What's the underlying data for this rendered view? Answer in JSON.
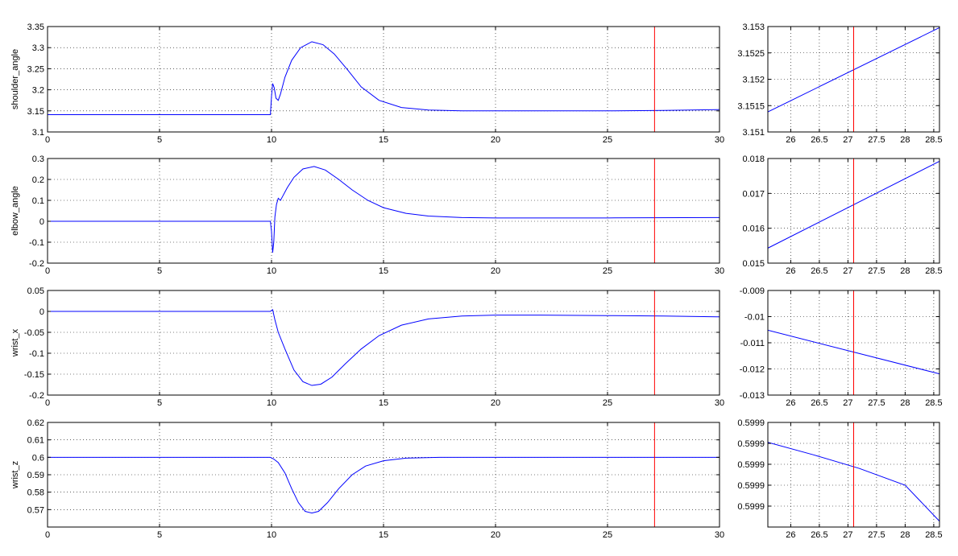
{
  "chart_data": [
    {
      "id": "shoulder-main",
      "type": "line",
      "ylabel": "shoulder_angle",
      "xlim": [
        0,
        30
      ],
      "ylim": [
        3.1,
        3.35
      ],
      "xticks": [
        0,
        5,
        10,
        15,
        20,
        25,
        30
      ],
      "xtick_labels": [
        "0",
        "5",
        "10",
        "15",
        "20",
        "25",
        "30"
      ],
      "yticks": [
        3.1,
        3.15,
        3.2,
        3.25,
        3.3,
        3.35
      ],
      "ytick_labels": [
        "3.1",
        "3.15",
        "3.2",
        "3.25",
        "3.3",
        "3.35"
      ],
      "grid": true,
      "cursor_x": 27.1,
      "series": [
        {
          "color": "#0000ff",
          "x": [
            0,
            7.5,
            9.95,
            10.0,
            10.05,
            10.12,
            10.2,
            10.3,
            10.4,
            10.6,
            10.9,
            11.3,
            11.8,
            12.3,
            12.8,
            13.4,
            14.0,
            14.8,
            15.8,
            17.0,
            18.5,
            20.0,
            25.0,
            27.5,
            30.0
          ],
          "y": [
            3.141,
            3.141,
            3.141,
            3.185,
            3.215,
            3.205,
            3.18,
            3.175,
            3.19,
            3.23,
            3.27,
            3.3,
            3.314,
            3.307,
            3.285,
            3.247,
            3.207,
            3.175,
            3.158,
            3.152,
            3.15,
            3.15,
            3.15,
            3.151,
            3.153
          ]
        }
      ]
    },
    {
      "id": "shoulder-zoom",
      "type": "line",
      "xlim": [
        25.6,
        28.6
      ],
      "ylim": [
        3.151,
        3.153
      ],
      "xticks": [
        26,
        26.5,
        27,
        27.5,
        28,
        28.5
      ],
      "xtick_labels": [
        "26",
        "26.5",
        "27",
        "27.5",
        "28",
        "28.5"
      ],
      "yticks": [
        3.151,
        3.1515,
        3.152,
        3.1525,
        3.153
      ],
      "ytick_labels": [
        "3.151",
        "3.1515",
        "3.152",
        "3.1525",
        "3.153"
      ],
      "grid": true,
      "cursor_x": 27.1,
      "series": [
        {
          "color": "#0000ff",
          "x": [
            25.6,
            28.6
          ],
          "y": [
            3.15138,
            3.15298
          ]
        }
      ]
    },
    {
      "id": "elbow-main",
      "type": "line",
      "ylabel": "elbow_angle",
      "xlim": [
        0,
        30
      ],
      "ylim": [
        -0.2,
        0.3
      ],
      "xticks": [
        0,
        5,
        10,
        15,
        20,
        25,
        30
      ],
      "xtick_labels": [
        "0",
        "5",
        "10",
        "15",
        "20",
        "25",
        "30"
      ],
      "yticks": [
        -0.2,
        -0.1,
        0,
        0.1,
        0.2,
        0.3
      ],
      "ytick_labels": [
        "-0.2",
        "-0.1",
        "0",
        "0.1",
        "0.2",
        "0.3"
      ],
      "grid": true,
      "cursor_x": 27.1,
      "series": [
        {
          "color": "#0000ff",
          "x": [
            0,
            9.95,
            10.0,
            10.05,
            10.1,
            10.15,
            10.22,
            10.3,
            10.4,
            10.5,
            10.7,
            11.0,
            11.4,
            11.9,
            12.4,
            13.0,
            13.6,
            14.3,
            15.0,
            16.0,
            17.0,
            18.5,
            20.0,
            25.0,
            30.0
          ],
          "y": [
            0,
            0,
            -0.05,
            -0.15,
            -0.1,
            0.02,
            0.08,
            0.11,
            0.1,
            0.12,
            0.16,
            0.21,
            0.25,
            0.262,
            0.245,
            0.2,
            0.15,
            0.1,
            0.065,
            0.038,
            0.025,
            0.018,
            0.016,
            0.016,
            0.018
          ]
        }
      ]
    },
    {
      "id": "elbow-zoom",
      "type": "line",
      "xlim": [
        25.6,
        28.6
      ],
      "ylim": [
        0.015,
        0.018
      ],
      "xticks": [
        26,
        26.5,
        27,
        27.5,
        28,
        28.5
      ],
      "xtick_labels": [
        "26",
        "26.5",
        "27",
        "27.5",
        "28",
        "28.5"
      ],
      "yticks": [
        0.015,
        0.016,
        0.017,
        0.018
      ],
      "ytick_labels": [
        "0.015",
        "0.016",
        "0.017",
        "0.018"
      ],
      "grid": true,
      "cursor_x": 27.1,
      "series": [
        {
          "color": "#0000ff",
          "x": [
            25.6,
            28.6
          ],
          "y": [
            0.01543,
            0.01792
          ]
        }
      ]
    },
    {
      "id": "wrist-x-main",
      "type": "line",
      "ylabel": "wrist_x",
      "xlim": [
        0,
        30
      ],
      "ylim": [
        -0.2,
        0.05
      ],
      "xticks": [
        0,
        5,
        10,
        15,
        20,
        25,
        30
      ],
      "xtick_labels": [
        "0",
        "5",
        "10",
        "15",
        "20",
        "25",
        "30"
      ],
      "yticks": [
        -0.2,
        -0.15,
        -0.1,
        -0.05,
        0,
        0.05
      ],
      "ytick_labels": [
        "-0.2",
        "-0.15",
        "-0.1",
        "-0.05",
        "0",
        "0.05"
      ],
      "grid": true,
      "cursor_x": 27.1,
      "series": [
        {
          "color": "#0000ff",
          "x": [
            0,
            9.95,
            10.05,
            10.15,
            10.3,
            10.6,
            11.0,
            11.4,
            11.8,
            12.2,
            12.7,
            13.3,
            14.0,
            14.8,
            15.8,
            17.0,
            18.5,
            20.0,
            22.0,
            25.0,
            27.5,
            30.0
          ],
          "y": [
            0,
            0,
            0.004,
            -0.02,
            -0.05,
            -0.09,
            -0.14,
            -0.168,
            -0.177,
            -0.174,
            -0.157,
            -0.125,
            -0.09,
            -0.058,
            -0.033,
            -0.018,
            -0.011,
            -0.009,
            -0.009,
            -0.01,
            -0.011,
            -0.013
          ]
        }
      ]
    },
    {
      "id": "wrist-x-zoom",
      "type": "line",
      "xlim": [
        25.6,
        28.6
      ],
      "ylim": [
        -0.013,
        -0.009
      ],
      "xticks": [
        26,
        26.5,
        27,
        27.5,
        28,
        28.5
      ],
      "xtick_labels": [
        "26",
        "26.5",
        "27",
        "27.5",
        "28",
        "28.5"
      ],
      "yticks": [
        -0.013,
        -0.012,
        -0.011,
        -0.01,
        -0.009
      ],
      "ytick_labels": [
        "-0.013",
        "-0.012",
        "-0.011",
        "-0.01",
        "-0.009"
      ],
      "grid": true,
      "cursor_x": 27.1,
      "series": [
        {
          "color": "#0000ff",
          "x": [
            25.6,
            28.6
          ],
          "y": [
            -0.01052,
            -0.01219
          ]
        }
      ]
    },
    {
      "id": "wrist-z-main",
      "type": "line",
      "ylabel": "wrist_z",
      "xlim": [
        0,
        30
      ],
      "ylim": [
        0.56,
        0.62
      ],
      "xticks": [
        0,
        5,
        10,
        15,
        20,
        25,
        30
      ],
      "xtick_labels": [
        "0",
        "5",
        "10",
        "15",
        "20",
        "25",
        "30"
      ],
      "yticks": [
        0.57,
        0.58,
        0.59,
        0.6,
        0.61,
        0.62
      ],
      "ytick_labels": [
        "0.57",
        "0.58",
        "0.59",
        "0.6",
        "0.61",
        "0.62"
      ],
      "grid": true,
      "cursor_x": 27.1,
      "series": [
        {
          "color": "#0000ff",
          "x": [
            0,
            9.95,
            10.1,
            10.3,
            10.6,
            10.9,
            11.2,
            11.5,
            11.8,
            12.1,
            12.5,
            13.0,
            13.6,
            14.2,
            15.0,
            16.0,
            17.5,
            20.0,
            25.0,
            30.0
          ],
          "y": [
            0.6,
            0.6,
            0.599,
            0.597,
            0.591,
            0.582,
            0.574,
            0.569,
            0.568,
            0.569,
            0.574,
            0.582,
            0.59,
            0.595,
            0.598,
            0.5995,
            0.6,
            0.6,
            0.6,
            0.6
          ]
        }
      ]
    },
    {
      "id": "wrist-z-zoom",
      "type": "line",
      "xlim": [
        25.6,
        28.6
      ],
      "ylim": [
        0,
        5
      ],
      "xticks": [
        26,
        26.5,
        27,
        27.5,
        28,
        28.5
      ],
      "xtick_labels": [
        "26",
        "26.5",
        "27",
        "27.5",
        "28",
        "28.5"
      ],
      "yticks": [
        1,
        2,
        3,
        4,
        5
      ],
      "ytick_labels": [
        "0.5999",
        "0.5999",
        "0.5999",
        "0.5999",
        "0.5999"
      ],
      "grid": true,
      "cursor_x": 27.1,
      "series": [
        {
          "color": "#0000ff",
          "x": [
            25.6,
            26.4,
            27.2,
            28.0,
            28.6
          ],
          "y": [
            4.05,
            3.45,
            2.8,
            2.0,
            0.28
          ]
        }
      ]
    }
  ]
}
